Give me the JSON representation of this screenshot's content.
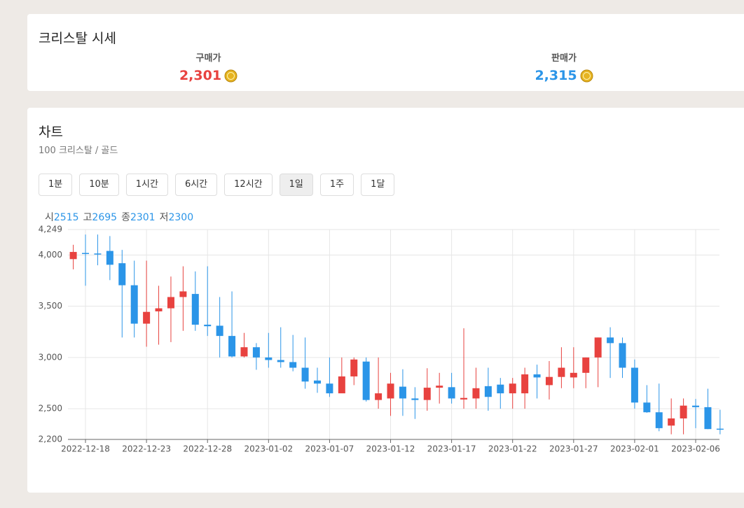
{
  "header": {
    "title": "크리스탈 시세",
    "buy_label": "구매가",
    "buy_price": "2,301",
    "sell_label": "판매가",
    "sell_price": "2,315"
  },
  "chart_panel": {
    "title": "차트",
    "subtitle": "100 크리스탈 / 골드",
    "intervals": [
      "1분",
      "10분",
      "1시간",
      "6시간",
      "12시간",
      "1일",
      "1주",
      "1달"
    ],
    "active": 5,
    "ohlc_info": [
      {
        "label": "시",
        "value": 2515
      },
      {
        "label": "고",
        "value": 2695
      },
      {
        "label": "종",
        "value": 2301
      },
      {
        "label": "저",
        "value": 2300
      }
    ]
  },
  "chart_data": {
    "type": "candlestick",
    "x": [
      "2022-12-17",
      "2022-12-18",
      "2022-12-19",
      "2022-12-20",
      "2022-12-21",
      "2022-12-22",
      "2022-12-23",
      "2022-12-24",
      "2022-12-25",
      "2022-12-26",
      "2022-12-27",
      "2022-12-28",
      "2022-12-29",
      "2022-12-30",
      "2022-12-31",
      "2023-01-01",
      "2023-01-02",
      "2023-01-03",
      "2023-01-04",
      "2023-01-05",
      "2023-01-06",
      "2023-01-07",
      "2023-01-08",
      "2023-01-09",
      "2023-01-10",
      "2023-01-11",
      "2023-01-12",
      "2023-01-13",
      "2023-01-14",
      "2023-01-15",
      "2023-01-16",
      "2023-01-17",
      "2023-01-18",
      "2023-01-19",
      "2023-01-20",
      "2023-01-21",
      "2023-01-22",
      "2023-01-23",
      "2023-01-24",
      "2023-01-25",
      "2023-01-26",
      "2023-01-27",
      "2023-01-28",
      "2023-01-29",
      "2023-01-30",
      "2023-01-31",
      "2023-02-01",
      "2023-02-02",
      "2023-02-03",
      "2023-02-04",
      "2023-02-05",
      "2023-02-06",
      "2023-02-07",
      "2023-02-08"
    ],
    "open": [
      3960,
      4020,
      4015,
      4040,
      3920,
      3705,
      3330,
      3450,
      3480,
      3590,
      3620,
      3320,
      3310,
      3210,
      3010,
      3100,
      3000,
      2975,
      2955,
      2900,
      2775,
      2745,
      2650,
      2815,
      2960,
      2585,
      2600,
      2715,
      2600,
      2585,
      2705,
      2710,
      2590,
      2600,
      2720,
      2735,
      2650,
      2650,
      2835,
      2730,
      2810,
      2805,
      2850,
      3000,
      3195,
      3140,
      2900,
      2560,
      2465,
      2335,
      2405,
      2530,
      2515,
      2305
    ],
    "high": [
      4100,
      4200,
      4200,
      4185,
      4050,
      3945,
      3945,
      3700,
      3790,
      3890,
      3840,
      3890,
      3590,
      3645,
      3240,
      3140,
      3240,
      3295,
      3220,
      3195,
      2900,
      3000,
      3000,
      3000,
      3000,
      3000,
      2850,
      2885,
      2710,
      2895,
      2850,
      2850,
      3285,
      2900,
      2900,
      2800,
      2800,
      2900,
      2930,
      2965,
      3100,
      3100,
      3000,
      3195,
      3295,
      3195,
      2980,
      2730,
      2745,
      2600,
      2600,
      2595,
      2695,
      2490
    ],
    "low": [
      3860,
      3700,
      3900,
      3755,
      3195,
      3195,
      3105,
      3125,
      3150,
      3260,
      3260,
      3210,
      3000,
      3000,
      3000,
      2880,
      2900,
      2900,
      2865,
      2695,
      2655,
      2615,
      2655,
      2730,
      2570,
      2500,
      2430,
      2430,
      2400,
      2480,
      2550,
      2550,
      2500,
      2500,
      2480,
      2500,
      2500,
      2500,
      2600,
      2590,
      2700,
      2700,
      2700,
      2710,
      2800,
      2800,
      2500,
      2460,
      2280,
      2250,
      2250,
      2310,
      2300,
      2250
    ],
    "close": [
      4030,
      4010,
      4005,
      3905,
      3705,
      3330,
      3445,
      3480,
      3590,
      3645,
      3320,
      3305,
      3210,
      3010,
      3100,
      3000,
      2975,
      2955,
      2900,
      2765,
      2745,
      2650,
      2815,
      2980,
      2585,
      2650,
      2745,
      2600,
      2585,
      2705,
      2725,
      2600,
      2605,
      2700,
      2615,
      2650,
      2745,
      2835,
      2805,
      2810,
      2900,
      2850,
      3000,
      3195,
      3140,
      2900,
      2560,
      2465,
      2310,
      2405,
      2530,
      2515,
      2301,
      2300
    ],
    "up_color": "#e8423f",
    "down_color": "#2b95e8",
    "ylim": [
      2200,
      4249
    ],
    "yticks": [
      {
        "value": 2200,
        "label": "2,200"
      },
      {
        "value": 2500,
        "label": "2,500"
      },
      {
        "value": 3000,
        "label": "3,000"
      },
      {
        "value": 3500,
        "label": "3,500"
      },
      {
        "value": 4000,
        "label": "4,000"
      },
      {
        "value": 4249,
        "label": "4,249"
      }
    ],
    "xticks": [
      "2022-12-18",
      "2022-12-23",
      "2022-12-28",
      "2023-01-02",
      "2023-01-07",
      "2023-01-12",
      "2023-01-17",
      "2023-01-22",
      "2023-01-27",
      "2023-02-01",
      "2023-02-06"
    ],
    "grid": true
  }
}
